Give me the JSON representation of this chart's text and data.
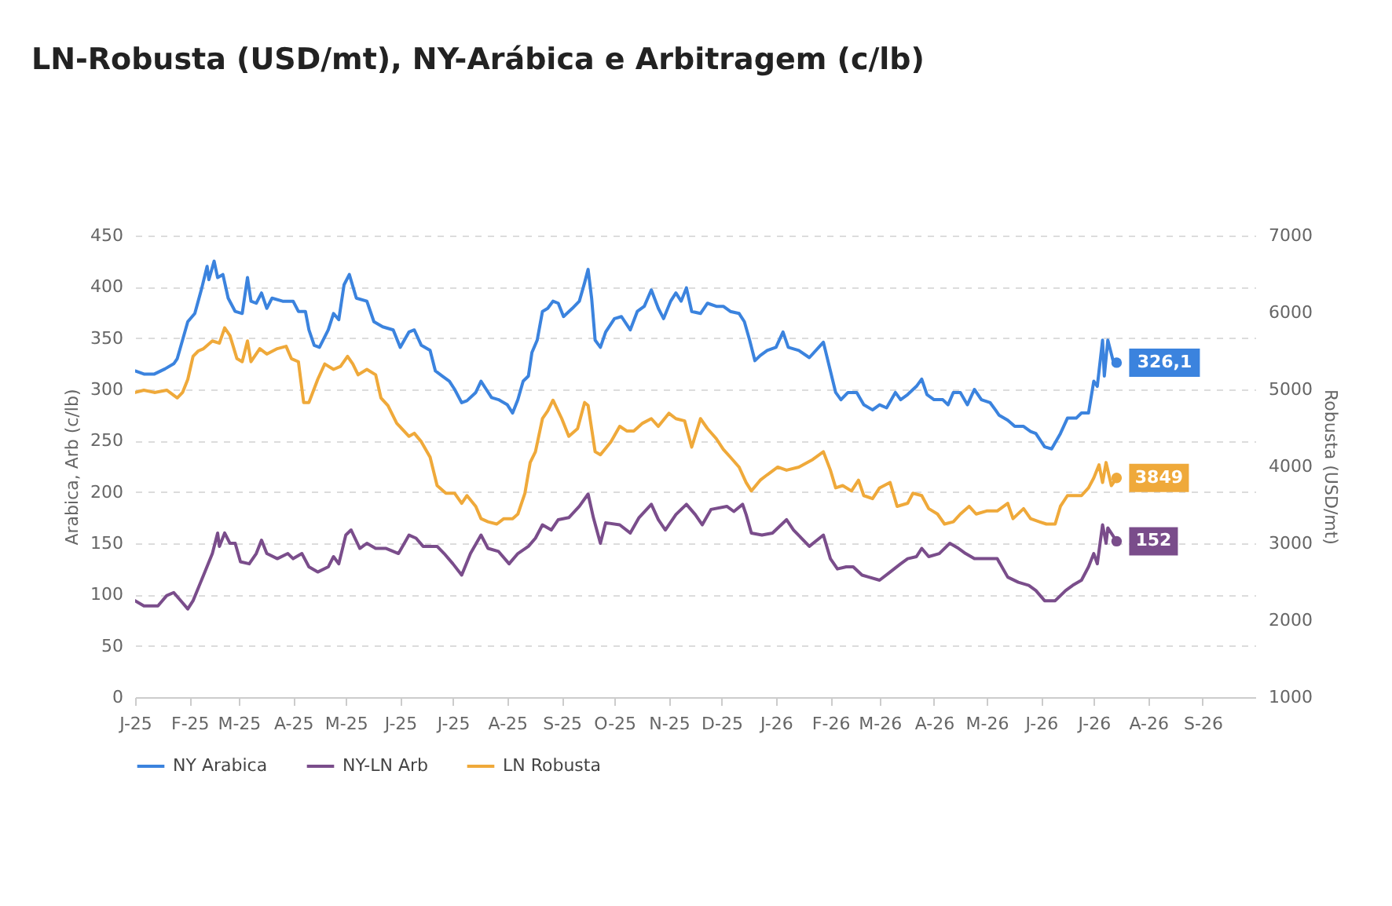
{
  "chart_data": {
    "type": "line",
    "title": "LN-Robusta (USD/mt), NY-Arábica e Arbitragem (c/lb)",
    "ylabel": "Arabica, Arb (c/lb)",
    "y2label": "Robusta (USD/mt)",
    "xlim": [
      "2025-01-01",
      "2026-10-01"
    ],
    "xticks": [
      {
        "value": "2025-01-01",
        "label": "J-25"
      },
      {
        "value": "2025-02-01",
        "label": "F-25"
      },
      {
        "value": "2025-03-01",
        "label": "M-25"
      },
      {
        "value": "2025-04-01",
        "label": "A-25"
      },
      {
        "value": "2025-05-01",
        "label": "M-25"
      },
      {
        "value": "2025-06-01",
        "label": "J-25"
      },
      {
        "value": "2025-07-01",
        "label": "J-25"
      },
      {
        "value": "2025-08-01",
        "label": "A-25"
      },
      {
        "value": "2025-09-01",
        "label": "S-25"
      },
      {
        "value": "2025-10-01",
        "label": "O-25"
      },
      {
        "value": "2025-11-01",
        "label": "N-25"
      },
      {
        "value": "2025-12-01",
        "label": "D-25"
      },
      {
        "value": "2026-01-01",
        "label": "J-26"
      },
      {
        "value": "2026-02-01",
        "label": "F-26"
      },
      {
        "value": "2026-03-01",
        "label": "M-26"
      },
      {
        "value": "2026-04-01",
        "label": "A-26"
      },
      {
        "value": "2026-05-01",
        "label": "M-26"
      },
      {
        "value": "2026-06-01",
        "label": "J-26"
      },
      {
        "value": "2026-07-01",
        "label": "J-26"
      },
      {
        "value": "2026-08-01",
        "label": "A-26"
      },
      {
        "value": "2026-09-01",
        "label": "S-26"
      }
    ],
    "ylim": [
      0,
      450
    ],
    "yticks": [
      0,
      50,
      100,
      150,
      200,
      250,
      300,
      350,
      400,
      450
    ],
    "y2lim": [
      1000,
      7000
    ],
    "y2ticks": [
      1000,
      2000,
      3000,
      4000,
      5000,
      6000,
      7000
    ],
    "grid": "y",
    "legend": "bottom",
    "series": [
      {
        "name": "NY Arabica",
        "color": "#3b83de",
        "x": [
          "2025-01-01",
          "2025-01-06",
          "2025-01-12",
          "2025-01-18",
          "2025-01-23",
          "2025-01-25",
          "2025-01-31",
          "2025-02-04",
          "2025-02-08",
          "2025-02-11",
          "2025-02-12",
          "2025-02-15",
          "2025-02-17",
          "2025-02-20",
          "2025-02-23",
          "2025-02-27",
          "2025-03-03",
          "2025-03-06",
          "2025-03-08",
          "2025-03-11",
          "2025-03-14",
          "2025-03-17",
          "2025-03-20",
          "2025-03-26",
          "2025-04-01",
          "2025-04-04",
          "2025-04-08",
          "2025-04-10",
          "2025-04-13",
          "2025-04-16",
          "2025-04-21",
          "2025-04-24",
          "2025-04-27",
          "2025-04-30",
          "2025-05-03",
          "2025-05-07",
          "2025-05-13",
          "2025-05-17",
          "2025-05-22",
          "2025-05-28",
          "2025-06-01",
          "2025-06-06",
          "2025-06-09",
          "2025-06-13",
          "2025-06-18",
          "2025-06-21",
          "2025-06-25",
          "2025-06-29",
          "2025-07-02",
          "2025-07-06",
          "2025-07-09",
          "2025-07-14",
          "2025-07-17",
          "2025-07-20",
          "2025-07-23",
          "2025-07-27",
          "2025-08-01",
          "2025-08-04",
          "2025-08-07",
          "2025-08-10",
          "2025-08-13",
          "2025-08-15",
          "2025-08-18",
          "2025-08-21",
          "2025-08-24",
          "2025-08-27",
          "2025-08-30",
          "2025-09-02",
          "2025-09-07",
          "2025-09-11",
          "2025-09-14",
          "2025-09-16",
          "2025-09-18",
          "2025-09-20",
          "2025-09-23",
          "2025-09-26",
          "2025-10-01",
          "2025-10-05",
          "2025-10-10",
          "2025-10-14",
          "2025-10-18",
          "2025-10-22",
          "2025-10-26",
          "2025-10-29",
          "2025-11-02",
          "2025-11-05",
          "2025-11-08",
          "2025-11-11",
          "2025-11-14",
          "2025-11-19",
          "2025-11-23",
          "2025-11-28",
          "2025-12-02",
          "2025-12-06",
          "2025-12-11",
          "2025-12-14",
          "2025-12-17",
          "2025-12-20",
          "2025-12-23",
          "2025-12-27",
          "2026-01-01",
          "2026-01-05",
          "2026-01-08",
          "2026-01-14",
          "2026-01-20",
          "2026-01-28",
          "2026-02-01",
          "2026-02-04",
          "2026-02-07",
          "2026-02-11",
          "2026-02-16",
          "2026-02-20",
          "2026-02-25",
          "2026-03-01",
          "2026-03-05",
          "2026-03-10",
          "2026-03-13",
          "2026-03-17",
          "2026-03-22",
          "2026-03-25",
          "2026-03-28",
          "2026-04-01",
          "2026-04-06",
          "2026-04-09",
          "2026-04-12",
          "2026-04-16",
          "2026-04-20",
          "2026-04-24",
          "2026-04-28",
          "2026-05-03",
          "2026-05-06",
          "2026-05-08",
          "2026-05-13",
          "2026-05-17",
          "2026-05-22",
          "2026-05-26",
          "2026-05-29",
          "2026-06-03",
          "2026-06-07",
          "2026-06-12",
          "2026-06-16",
          "2026-06-21",
          "2026-06-24",
          "2026-06-28",
          "2026-07-01",
          "2026-07-03",
          "2026-07-06",
          "2026-07-07",
          "2026-07-09",
          "2026-07-12",
          "2026-07-14"
        ],
        "values": [
          318,
          315,
          315,
          320,
          325,
          330,
          366,
          374,
          399,
          420,
          407,
          425,
          409,
          412,
          389,
          376,
          374,
          409,
          386,
          384,
          394,
          379,
          389,
          386,
          386,
          376,
          376,
          358,
          343,
          341,
          358,
          374,
          368,
          402,
          412,
          389,
          386,
          366,
          361,
          358,
          341,
          356,
          358,
          343,
          338,
          318,
          313,
          308,
          300,
          287,
          289,
          297,
          308,
          300,
          292,
          290,
          285,
          277,
          290,
          308,
          313,
          336,
          348,
          376,
          379,
          386,
          384,
          371,
          379,
          386,
          404,
          417,
          389,
          348,
          341,
          356,
          369,
          371,
          358,
          376,
          381,
          397,
          379,
          369,
          386,
          394,
          386,
          399,
          376,
          374,
          384,
          381,
          381,
          376,
          374,
          366,
          348,
          328,
          333,
          338,
          341,
          356,
          341,
          338,
          331,
          346,
          318,
          297,
          290,
          297,
          297,
          285,
          280,
          285,
          282,
          297,
          290,
          295,
          303,
          310,
          295,
          290,
          290,
          285,
          297,
          297,
          285,
          300,
          290,
          287,
          280,
          275,
          270,
          264,
          264,
          259,
          257,
          244,
          242,
          257,
          272,
          272,
          277,
          277,
          308,
          303,
          348,
          313,
          348,
          328,
          326.1
        ]
      },
      {
        "name": "NY-LN Arb",
        "color": "#7a4d8b",
        "x": [
          "2025-01-01",
          "2025-01-06",
          "2025-01-14",
          "2025-01-19",
          "2025-01-23",
          "2025-01-28",
          "2025-01-31",
          "2025-02-03",
          "2025-02-09",
          "2025-02-14",
          "2025-02-17",
          "2025-02-18",
          "2025-02-21",
          "2025-02-24",
          "2025-02-27",
          "2025-03-02",
          "2025-03-07",
          "2025-03-11",
          "2025-03-14",
          "2025-03-17",
          "2025-03-23",
          "2025-03-29",
          "2025-04-01",
          "2025-04-06",
          "2025-04-10",
          "2025-04-15",
          "2025-04-21",
          "2025-04-24",
          "2025-04-27",
          "2025-05-01",
          "2025-05-04",
          "2025-05-09",
          "2025-05-13",
          "2025-05-18",
          "2025-05-24",
          "2025-05-31",
          "2025-06-06",
          "2025-06-10",
          "2025-06-14",
          "2025-06-22",
          "2025-06-26",
          "2025-07-01",
          "2025-07-06",
          "2025-07-11",
          "2025-07-17",
          "2025-07-21",
          "2025-07-27",
          "2025-08-02",
          "2025-08-07",
          "2025-08-13",
          "2025-08-17",
          "2025-08-21",
          "2025-08-26",
          "2025-08-30",
          "2025-09-05",
          "2025-09-11",
          "2025-09-16",
          "2025-09-19",
          "2025-09-23",
          "2025-09-26",
          "2025-10-04",
          "2025-10-10",
          "2025-10-15",
          "2025-10-22",
          "2025-10-26",
          "2025-10-30",
          "2025-11-05",
          "2025-11-11",
          "2025-11-16",
          "2025-11-20",
          "2025-11-25",
          "2025-12-04",
          "2025-12-08",
          "2025-12-13",
          "2025-12-15",
          "2025-12-18",
          "2025-12-24",
          "2025-12-30",
          "2026-01-07",
          "2026-01-11",
          "2026-01-20",
          "2026-01-28",
          "2026-02-01",
          "2026-02-05",
          "2026-02-10",
          "2026-02-14",
          "2026-02-19",
          "2026-02-23",
          "2026-03-01",
          "2026-03-07",
          "2026-03-13",
          "2026-03-17",
          "2026-03-22",
          "2026-03-25",
          "2026-03-29",
          "2026-04-04",
          "2026-04-10",
          "2026-04-15",
          "2026-04-19",
          "2026-04-24",
          "2026-05-01",
          "2026-05-07",
          "2026-05-13",
          "2026-05-19",
          "2026-05-25",
          "2026-05-29",
          "2026-06-03",
          "2026-06-09",
          "2026-06-15",
          "2026-06-19",
          "2026-06-24",
          "2026-06-28",
          "2026-07-01",
          "2026-07-03",
          "2026-07-06",
          "2026-07-08",
          "2026-07-09",
          "2026-07-14"
        ],
        "values": [
          94,
          89,
          89,
          99,
          102,
          92,
          86,
          94,
          119,
          140,
          160,
          147,
          160,
          150,
          150,
          132,
          130,
          140,
          153,
          140,
          135,
          140,
          135,
          140,
          127,
          122,
          127,
          137,
          130,
          158,
          163,
          145,
          150,
          145,
          145,
          140,
          158,
          155,
          147,
          147,
          140,
          130,
          119,
          140,
          158,
          145,
          142,
          130,
          140,
          147,
          155,
          168,
          163,
          173,
          175,
          186,
          198,
          175,
          150,
          170,
          168,
          160,
          175,
          188,
          173,
          163,
          178,
          188,
          178,
          168,
          183,
          186,
          181,
          188,
          178,
          160,
          158,
          160,
          173,
          163,
          147,
          158,
          135,
          125,
          127,
          127,
          119,
          117,
          114,
          122,
          130,
          135,
          137,
          145,
          137,
          140,
          150,
          145,
          140,
          135,
          135,
          135,
          117,
          112,
          109,
          104,
          94,
          94,
          104,
          109,
          114,
          127,
          140,
          130,
          168,
          150,
          165,
          152
        ]
      },
      {
        "name": "LN Robusta",
        "color": "#efa93a",
        "axis": "y2",
        "x": [
          "2025-01-01",
          "2025-01-06",
          "2025-01-12",
          "2025-01-19",
          "2025-01-25",
          "2025-01-28",
          "2025-01-31",
          "2025-02-03",
          "2025-02-06",
          "2025-02-09",
          "2025-02-14",
          "2025-02-18",
          "2025-02-21",
          "2025-02-24",
          "2025-02-28",
          "2025-03-03",
          "2025-03-06",
          "2025-03-08",
          "2025-03-13",
          "2025-03-17",
          "2025-03-23",
          "2025-03-28",
          "2025-03-31",
          "2025-04-04",
          "2025-04-07",
          "2025-04-10",
          "2025-04-15",
          "2025-04-19",
          "2025-04-24",
          "2025-04-28",
          "2025-05-02",
          "2025-05-05",
          "2025-05-08",
          "2025-05-13",
          "2025-05-18",
          "2025-05-21",
          "2025-05-25",
          "2025-05-30",
          "2025-06-06",
          "2025-06-09",
          "2025-06-13",
          "2025-06-18",
          "2025-06-22",
          "2025-06-27",
          "2025-07-02",
          "2025-07-06",
          "2025-07-09",
          "2025-07-14",
          "2025-07-17",
          "2025-07-21",
          "2025-07-26",
          "2025-07-30",
          "2025-08-04",
          "2025-08-07",
          "2025-08-11",
          "2025-08-14",
          "2025-08-17",
          "2025-08-21",
          "2025-08-24",
          "2025-08-27",
          "2025-09-01",
          "2025-09-05",
          "2025-09-10",
          "2025-09-14",
          "2025-09-16",
          "2025-09-20",
          "2025-09-23",
          "2025-09-29",
          "2025-10-04",
          "2025-10-08",
          "2025-10-12",
          "2025-10-17",
          "2025-10-22",
          "2025-10-26",
          "2025-11-01",
          "2025-11-05",
          "2025-11-10",
          "2025-11-14",
          "2025-11-19",
          "2025-11-23",
          "2025-11-28",
          "2025-12-02",
          "2025-12-06",
          "2025-12-11",
          "2025-12-15",
          "2025-12-18",
          "2025-12-23",
          "2025-12-27",
          "2026-01-02",
          "2026-01-07",
          "2026-01-14",
          "2026-01-22",
          "2026-01-28",
          "2026-02-01",
          "2026-02-04",
          "2026-02-08",
          "2026-02-13",
          "2026-02-17",
          "2026-02-20",
          "2026-02-25",
          "2026-03-01",
          "2026-03-07",
          "2026-03-11",
          "2026-03-17",
          "2026-03-20",
          "2026-03-25",
          "2026-03-29",
          "2026-04-03",
          "2026-04-07",
          "2026-04-12",
          "2026-04-16",
          "2026-04-21",
          "2026-04-25",
          "2026-05-01",
          "2026-05-07",
          "2026-05-13",
          "2026-05-16",
          "2026-05-22",
          "2026-05-26",
          "2026-05-31",
          "2026-06-04",
          "2026-06-09",
          "2026-06-12",
          "2026-06-16",
          "2026-06-21",
          "2026-06-24",
          "2026-06-28",
          "2026-07-01",
          "2026-07-04",
          "2026-07-06",
          "2026-07-08",
          "2026-07-11",
          "2026-07-14"
        ],
        "values": [
          4960,
          4990,
          4960,
          4990,
          4890,
          4960,
          5130,
          5430,
          5500,
          5530,
          5630,
          5600,
          5800,
          5700,
          5400,
          5360,
          5630,
          5360,
          5530,
          5460,
          5530,
          5560,
          5400,
          5360,
          4830,
          4830,
          5130,
          5330,
          5260,
          5300,
          5430,
          5330,
          5190,
          5260,
          5190,
          4890,
          4790,
          4560,
          4390,
          4430,
          4320,
          4120,
          3750,
          3650,
          3650,
          3520,
          3620,
          3480,
          3320,
          3280,
          3250,
          3320,
          3320,
          3380,
          3650,
          4050,
          4190,
          4620,
          4720,
          4860,
          4620,
          4390,
          4490,
          4830,
          4790,
          4190,
          4150,
          4320,
          4520,
          4460,
          4460,
          4560,
          4620,
          4520,
          4690,
          4620,
          4590,
          4250,
          4620,
          4490,
          4360,
          4220,
          4120,
          3990,
          3790,
          3680,
          3820,
          3890,
          3990,
          3950,
          3990,
          4090,
          4190,
          3950,
          3720,
          3750,
          3680,
          3820,
          3620,
          3580,
          3720,
          3790,
          3480,
          3520,
          3650,
          3620,
          3450,
          3380,
          3250,
          3280,
          3380,
          3480,
          3380,
          3420,
          3420,
          3520,
          3320,
          3450,
          3320,
          3280,
          3250,
          3250,
          3480,
          3620,
          3620,
          3620,
          3720,
          3850,
          4020,
          3790,
          4050,
          3750,
          3849
        ]
      }
    ],
    "annotations": [
      "326,1",
      "152",
      "3849"
    ]
  }
}
